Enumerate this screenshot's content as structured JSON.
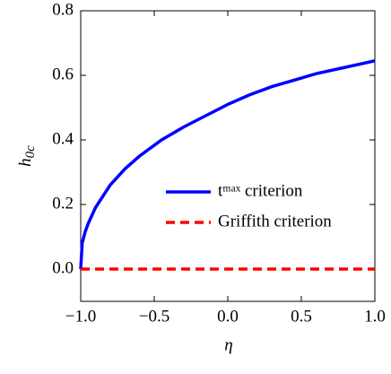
{
  "chart_data": {
    "type": "line",
    "xlabel": "η",
    "ylabel": {
      "base": "h",
      "sub": "0c"
    },
    "xlim": [
      -1,
      1
    ],
    "ylim": [
      -0.1,
      0.8
    ],
    "xticks": [
      {
        "value": -1.0,
        "label": "−1.0"
      },
      {
        "value": -0.5,
        "label": "−0.5"
      },
      {
        "value": 0.0,
        "label": "0.0"
      },
      0.5,
      {
        "value": 1.0,
        "label": "1.0"
      }
    ],
    "yticks": [
      {
        "value": 0.0,
        "label": "0.0"
      },
      0.2,
      0.4,
      0.6,
      0.8
    ],
    "legend": "center-right",
    "series": [
      {
        "name": "tᵐᵃˣ criterion",
        "color": "#0000ff",
        "dash": false,
        "x": [
          -1,
          -0.99,
          -0.97,
          -0.95,
          -0.9,
          -0.8,
          -0.7,
          -0.6,
          -0.45,
          -0.3,
          -0.15,
          0,
          0.15,
          0.3,
          0.45,
          0.6,
          0.8,
          1
        ],
        "values": [
          0,
          0.08,
          0.115,
          0.14,
          0.19,
          0.26,
          0.31,
          0.35,
          0.4,
          0.44,
          0.475,
          0.51,
          0.54,
          0.565,
          0.585,
          0.605,
          0.625,
          0.645
        ]
      },
      {
        "name": "Griffith criterion",
        "color": "#ff0000",
        "dash": true,
        "x": [
          -1,
          1
        ],
        "values": [
          0,
          0
        ]
      }
    ]
  }
}
